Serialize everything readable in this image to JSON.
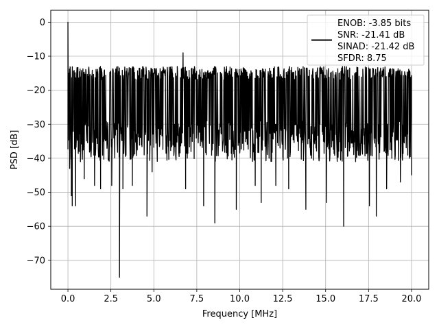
{
  "chart_data": {
    "type": "line",
    "xlabel": "Frequency [MHz]",
    "ylabel": "PSD [dB]",
    "xlim": [
      -1.0,
      21.0
    ],
    "ylim": [
      -78.5,
      3.5
    ],
    "xticks": [
      0.0,
      2.5,
      5.0,
      7.5,
      10.0,
      12.5,
      15.0,
      17.5,
      20.0
    ],
    "xtick_labels": [
      "0.0",
      "2.5",
      "5.0",
      "7.5",
      "10.0",
      "12.5",
      "15.0",
      "17.5",
      "20.0"
    ],
    "yticks": [
      0,
      -10,
      -20,
      -30,
      -40,
      -50,
      -60,
      -70
    ],
    "ytick_labels": [
      "0",
      "−10",
      "−20",
      "−30",
      "−40",
      "−50",
      "−60",
      "−70"
    ],
    "grid": true,
    "legend_position": "top-right",
    "series": [
      {
        "color": "#000000",
        "description": "dense noisy PSD trace; peak 0 dB near DC, floor roughly -15 to -35 dB",
        "peak": {
          "x": 0.0,
          "y": 0.0
        },
        "noise_band": {
          "top": -15,
          "bottom": -35,
          "mean": -26
        },
        "notable_points": [
          {
            "x": 0.05,
            "y": -15
          },
          {
            "x": 0.1,
            "y": -43
          },
          {
            "x": 0.2,
            "y": -51
          },
          {
            "x": 0.25,
            "y": -54
          },
          {
            "x": 0.45,
            "y": -54
          },
          {
            "x": 0.95,
            "y": -46
          },
          {
            "x": 1.55,
            "y": -48
          },
          {
            "x": 1.9,
            "y": -49
          },
          {
            "x": 2.55,
            "y": -48
          },
          {
            "x": 3.0,
            "y": -75
          },
          {
            "x": 3.2,
            "y": -49
          },
          {
            "x": 3.75,
            "y": -48
          },
          {
            "x": 4.6,
            "y": -57
          },
          {
            "x": 4.9,
            "y": -44
          },
          {
            "x": 6.85,
            "y": -49
          },
          {
            "x": 6.7,
            "y": -9
          },
          {
            "x": 7.9,
            "y": -54
          },
          {
            "x": 8.55,
            "y": -59
          },
          {
            "x": 9.8,
            "y": -55
          },
          {
            "x": 10.9,
            "y": -48
          },
          {
            "x": 11.25,
            "y": -53
          },
          {
            "x": 12.1,
            "y": -48
          },
          {
            "x": 12.85,
            "y": -49
          },
          {
            "x": 13.85,
            "y": -55
          },
          {
            "x": 15.05,
            "y": -53
          },
          {
            "x": 16.05,
            "y": -60
          },
          {
            "x": 17.55,
            "y": -54
          },
          {
            "x": 17.95,
            "y": -57
          },
          {
            "x": 18.55,
            "y": -49
          },
          {
            "x": 19.35,
            "y": -47
          },
          {
            "x": 20.0,
            "y": -45
          }
        ]
      }
    ],
    "legend": {
      "lines": [
        "ENOB: -3.85 bits",
        "SNR: -21.41 dB",
        "SINAD: -21.42 dB",
        "SFDR: 8.75"
      ]
    }
  }
}
